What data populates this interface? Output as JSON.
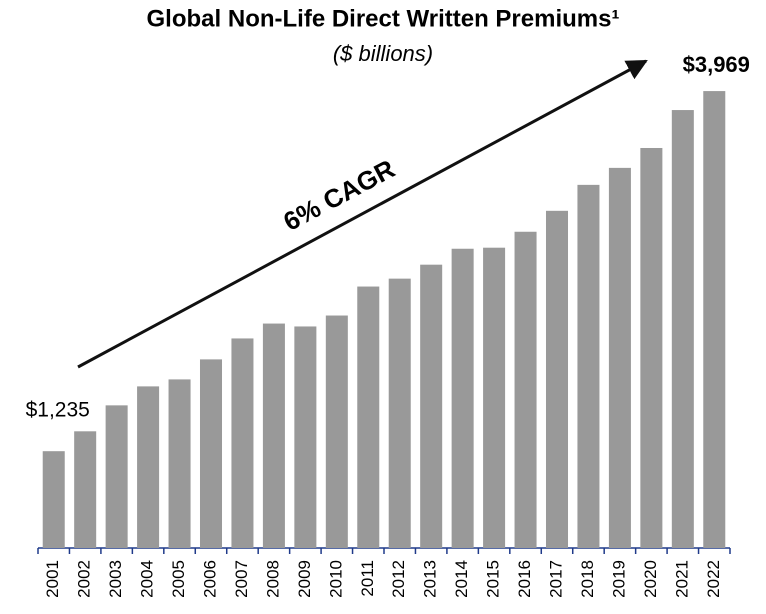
{
  "chart_data": {
    "type": "bar",
    "title": "Global Non-Life Direct Written Premiums¹",
    "subtitle": "($ billions)",
    "annotation": "6% CAGR",
    "categories": [
      "2001",
      "2002",
      "2003",
      "2004",
      "2005",
      "2006",
      "2007",
      "2008",
      "2009",
      "2010",
      "2011",
      "2012",
      "2013",
      "2014",
      "2015",
      "2016",
      "2017",
      "2018",
      "2019",
      "2020",
      "2021",
      "2022"
    ],
    "values": [
      1235,
      1386,
      1583,
      1727,
      1780,
      1932,
      2091,
      2204,
      2182,
      2265,
      2485,
      2545,
      2651,
      2772,
      2780,
      2901,
      3060,
      3257,
      3386,
      3537,
      3825,
      3969
    ],
    "value_labels": [
      "$1,235",
      null,
      null,
      null,
      null,
      null,
      null,
      null,
      null,
      null,
      null,
      null,
      null,
      null,
      null,
      null,
      null,
      null,
      null,
      null,
      null,
      "$3,969"
    ],
    "color": "#999999",
    "ylim": [
      500,
      4000
    ]
  }
}
